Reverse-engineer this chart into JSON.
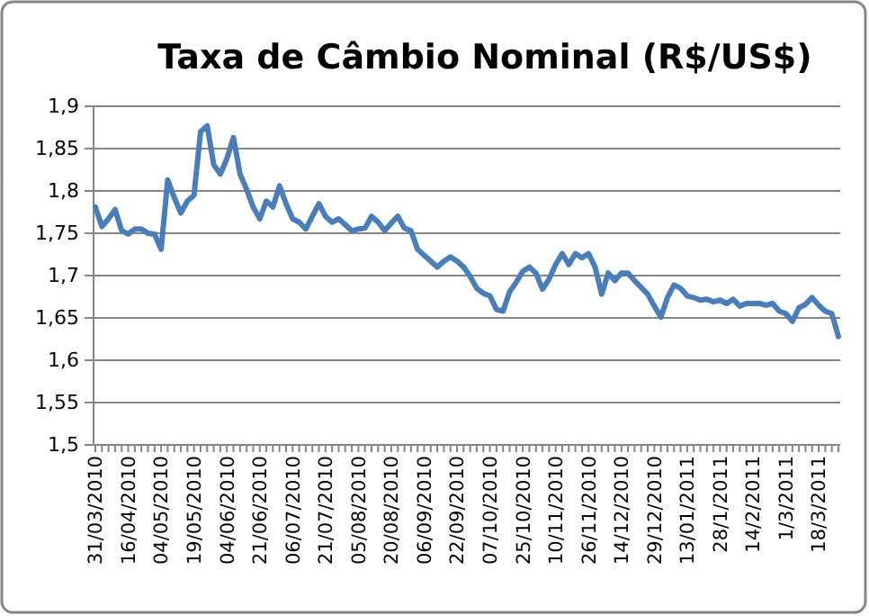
{
  "chart_data": {
    "type": "line",
    "title": "Taxa de Câmbio Nominal (R$/US$)",
    "categories": [
      "31/03/2010",
      null,
      null,
      null,
      null,
      "16/04/2010",
      null,
      null,
      null,
      null,
      "04/05/2010",
      null,
      null,
      null,
      null,
      "19/05/2010",
      null,
      null,
      null,
      null,
      "04/06/2010",
      null,
      null,
      null,
      null,
      "21/06/2010",
      null,
      null,
      null,
      null,
      "06/07/2010",
      null,
      null,
      null,
      null,
      "21/07/2010",
      null,
      null,
      null,
      null,
      "05/08/2010",
      null,
      null,
      null,
      null,
      "20/08/2010",
      null,
      null,
      null,
      null,
      "06/09/2010",
      null,
      null,
      null,
      null,
      "22/09/2010",
      null,
      null,
      null,
      null,
      "07/10/2010",
      null,
      null,
      null,
      null,
      "25/10/2010",
      null,
      null,
      null,
      null,
      "10/11/2010",
      null,
      null,
      null,
      null,
      "26/11/2010",
      null,
      null,
      null,
      null,
      "14/12/2010",
      null,
      null,
      null,
      null,
      "29/12/2010",
      null,
      null,
      null,
      null,
      "13/01/2011",
      null,
      null,
      null,
      null,
      "28/1/2011",
      null,
      null,
      null,
      null,
      "14/2/2011",
      null,
      null,
      null,
      null,
      "1/3/2011",
      null,
      null,
      null,
      null,
      "18/3/2011",
      null,
      null,
      null
    ],
    "series": [
      {
        "color": "#4a7ebb",
        "values": [
          1.781,
          1.758,
          1.767,
          1.778,
          1.753,
          1.749,
          1.755,
          1.755,
          1.75,
          1.749,
          1.731,
          1.813,
          1.792,
          1.774,
          1.788,
          1.795,
          1.87,
          1.877,
          1.831,
          1.82,
          1.838,
          1.863,
          1.82,
          1.802,
          1.781,
          1.767,
          1.788,
          1.781,
          1.806,
          1.785,
          1.767,
          1.763,
          1.755,
          1.77,
          1.785,
          1.77,
          1.763,
          1.767,
          1.76,
          1.753,
          1.755,
          1.756,
          1.77,
          1.763,
          1.753,
          1.762,
          1.77,
          1.756,
          1.753,
          1.731,
          1.724,
          1.717,
          1.71,
          1.717,
          1.722,
          1.717,
          1.71,
          1.699,
          1.685,
          1.679,
          1.676,
          1.66,
          1.658,
          1.681,
          1.692,
          1.705,
          1.71,
          1.703,
          1.684,
          1.696,
          1.713,
          1.726,
          1.713,
          1.726,
          1.721,
          1.726,
          1.71,
          1.678,
          1.703,
          1.694,
          1.703,
          1.703,
          1.694,
          1.686,
          1.678,
          1.664,
          1.651,
          1.674,
          1.689,
          1.685,
          1.676,
          1.674,
          1.671,
          1.672,
          1.669,
          1.671,
          1.667,
          1.672,
          1.664,
          1.667,
          1.667,
          1.667,
          1.665,
          1.667,
          1.658,
          1.655,
          1.646,
          1.662,
          1.666,
          1.674,
          1.665,
          1.658,
          1.655,
          1.628
        ]
      }
    ],
    "ylim": [
      1.5,
      1.9
    ],
    "yticks": [
      {
        "value": 1.5,
        "label": "1,5"
      },
      {
        "value": 1.55,
        "label": "1,55"
      },
      {
        "value": 1.6,
        "label": "1,6"
      },
      {
        "value": 1.65,
        "label": "1,65"
      },
      {
        "value": 1.7,
        "label": "1,7"
      },
      {
        "value": 1.75,
        "label": "1,75"
      },
      {
        "value": 1.8,
        "label": "1,8"
      },
      {
        "value": 1.85,
        "label": "1,85"
      },
      {
        "value": 1.9,
        "label": "1,9"
      }
    ],
    "grid": "y",
    "marker": "none",
    "line_style": "solid"
  }
}
